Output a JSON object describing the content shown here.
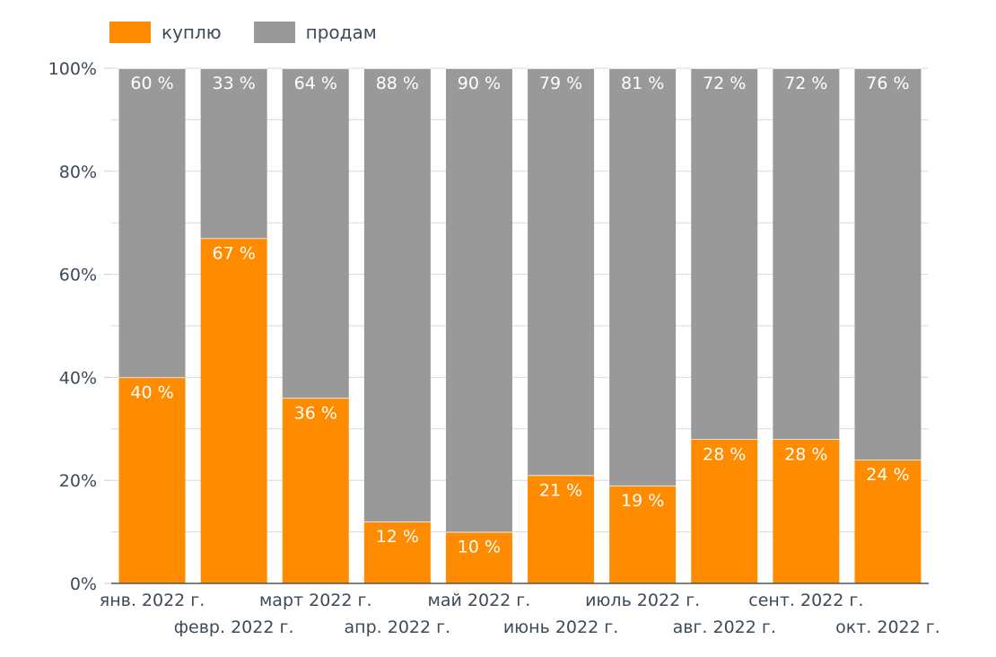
{
  "chart_data": {
    "type": "bar",
    "stacked": true,
    "categories": [
      "янв. 2022 г.",
      "февр. 2022 г.",
      "март 2022 г.",
      "апр. 2022 г.",
      "май 2022 г.",
      "июнь 2022 г.",
      "июль 2022 г.",
      "авг. 2022 г.",
      "сент. 2022 г.",
      "окт. 2022 г."
    ],
    "series": [
      {
        "name": "куплю",
        "color": "#FF8C00",
        "values": [
          40,
          67,
          36,
          12,
          10,
          21,
          19,
          28,
          28,
          24
        ],
        "labels": [
          "40 %",
          "67 %",
          "36 %",
          "12 %",
          "10 %",
          "21 %",
          "19 %",
          "28 %",
          "28 %",
          "24 %"
        ]
      },
      {
        "name": "продам",
        "color": "#999999",
        "values": [
          60,
          33,
          64,
          88,
          90,
          79,
          81,
          72,
          72,
          76
        ],
        "labels": [
          "60 %",
          "33 %",
          "64 %",
          "88 %",
          "90 %",
          "79 %",
          "81 %",
          "72 %",
          "72 %",
          "76 %"
        ]
      }
    ],
    "ylim": [
      0,
      100
    ],
    "yticks": [
      0,
      20,
      40,
      60,
      80,
      100
    ],
    "ytick_labels": [
      "0%",
      "20%",
      "40%",
      "60%",
      "80%",
      "100%"
    ],
    "minor_gridlines": true,
    "legend_position": "top-left",
    "title": "",
    "xlabel": "",
    "ylabel": ""
  }
}
